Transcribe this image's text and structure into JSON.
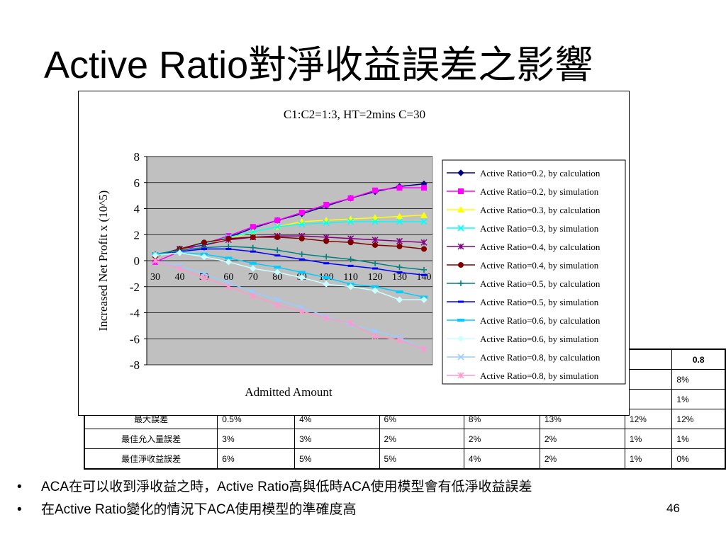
{
  "slide": {
    "title": "Active Ratio對淨收益誤差之影響",
    "page_number": "46",
    "bullets": [
      "ACA在可以收到淨收益之時，Active Ratio高與低時ACA使用模型會有低淨收益誤差",
      "在Active Ratio變化的情況下ACA使用模型的準確度高"
    ]
  },
  "table": {
    "rows": [
      [
        "",
        "",
        "",
        "",
        "",
        "",
        "",
        "0.8"
      ],
      [
        "",
        "",
        "",
        "",
        "",
        "",
        "",
        "8%"
      ],
      [
        "",
        "",
        "",
        "",
        "",
        "",
        "",
        "1%"
      ],
      [
        "最大誤差",
        "0.5%",
        "4%",
        "6%",
        "8%",
        "13%",
        "12%",
        "12%"
      ],
      [
        "最佳允入量誤差",
        "3%",
        "3%",
        "2%",
        "2%",
        "2%",
        "1%",
        "1%"
      ],
      [
        "最佳淨收益誤差",
        "6%",
        "5%",
        "5%",
        "4%",
        "2%",
        "1%",
        "0%"
      ]
    ]
  },
  "chart_data": {
    "type": "line",
    "title": "C1:C2=1:3, HT=2mins C=30",
    "xlabel": "Admitted Amount",
    "ylabel": "Increased Net Profit x (10^5)",
    "ylim": [
      -8,
      8
    ],
    "yticks": [
      8,
      6,
      4,
      2,
      0,
      -2,
      -4,
      -6,
      -8
    ],
    "x": [
      30,
      40,
      50,
      60,
      70,
      80,
      90,
      100,
      110,
      120,
      130,
      140
    ],
    "grid": "horizontal",
    "legend_position": "right",
    "plot_background": "#c0c0c0",
    "series": [
      {
        "name": "Active Ratio=0.2, by calculation",
        "color": "#000080",
        "marker": "diamond",
        "values": [
          0.4,
          0.9,
          1.2,
          1.8,
          2.5,
          3.1,
          3.6,
          4.2,
          4.8,
          5.3,
          5.7,
          5.9
        ]
      },
      {
        "name": "Active Ratio=0.2, by simulation",
        "color": "#ff00ff",
        "marker": "square",
        "values": [
          -0.1,
          0.7,
          1.3,
          1.9,
          2.6,
          3.1,
          3.7,
          4.3,
          4.8,
          5.4,
          5.6,
          5.6
        ]
      },
      {
        "name": "Active Ratio=0.3, by calculation",
        "color": "#ffff00",
        "marker": "triangle",
        "values": [
          0.3,
          0.8,
          1.3,
          1.7,
          2.2,
          2.6,
          3.0,
          3.1,
          3.2,
          3.3,
          3.4,
          3.5
        ]
      },
      {
        "name": "Active Ratio=0.3, by simulation",
        "color": "#00ffff",
        "marker": "x",
        "values": [
          0.4,
          0.9,
          1.3,
          1.8,
          2.2,
          2.6,
          2.8,
          2.9,
          3.0,
          3.0,
          3.0,
          3.0
        ]
      },
      {
        "name": "Active Ratio=0.4, by calculation",
        "color": "#800080",
        "marker": "star",
        "values": [
          0.4,
          0.9,
          1.2,
          1.6,
          1.8,
          1.9,
          1.9,
          1.8,
          1.7,
          1.6,
          1.5,
          1.4
        ]
      },
      {
        "name": "Active Ratio=0.4, by simulation",
        "color": "#800000",
        "marker": "circle",
        "values": [
          0.3,
          0.9,
          1.4,
          1.7,
          1.8,
          1.8,
          1.7,
          1.5,
          1.4,
          1.2,
          1.1,
          0.9
        ]
      },
      {
        "name": "Active Ratio=0.5, by calculation",
        "color": "#008080",
        "marker": "plus",
        "values": [
          0.5,
          0.8,
          1.0,
          1.1,
          1.0,
          0.8,
          0.5,
          0.3,
          0.1,
          -0.2,
          -0.5,
          -0.7
        ]
      },
      {
        "name": "Active Ratio=0.5, by simulation",
        "color": "#0000ff",
        "marker": "dash",
        "values": [
          0.4,
          0.7,
          0.9,
          0.9,
          0.7,
          0.4,
          0.1,
          -0.2,
          -0.4,
          -0.6,
          -0.9,
          -1.1
        ]
      },
      {
        "name": "Active Ratio=0.6, by calculation",
        "color": "#00ccff",
        "marker": "bar",
        "values": [
          0.5,
          0.6,
          0.5,
          0.2,
          -0.2,
          -0.5,
          -0.9,
          -1.3,
          -1.8,
          -2.0,
          -2.4,
          -2.8
        ]
      },
      {
        "name": "Active Ratio=0.6, by simulation",
        "color": "#ccffff",
        "marker": "diamond",
        "values": [
          0.4,
          0.6,
          0.3,
          -0.1,
          -0.6,
          -0.9,
          -1.3,
          -1.8,
          -2.0,
          -2.3,
          -3.0,
          -3.0
        ]
      },
      {
        "name": "Active Ratio=0.8, by calculation",
        "color": "#99ccff",
        "marker": "x",
        "values": [
          0.0,
          -0.4,
          -1.0,
          -1.7,
          -2.4,
          -3.0,
          -3.6,
          -4.3,
          -4.9,
          -5.4,
          -5.9,
          -6.8
        ]
      },
      {
        "name": "Active Ratio=0.8, by simulation",
        "color": "#ff99cc",
        "marker": "star",
        "values": [
          0.0,
          -0.6,
          -1.3,
          -2.0,
          -2.7,
          -3.4,
          -3.9,
          -4.4,
          -4.8,
          -5.8,
          -6.1,
          -6.8
        ]
      }
    ]
  }
}
